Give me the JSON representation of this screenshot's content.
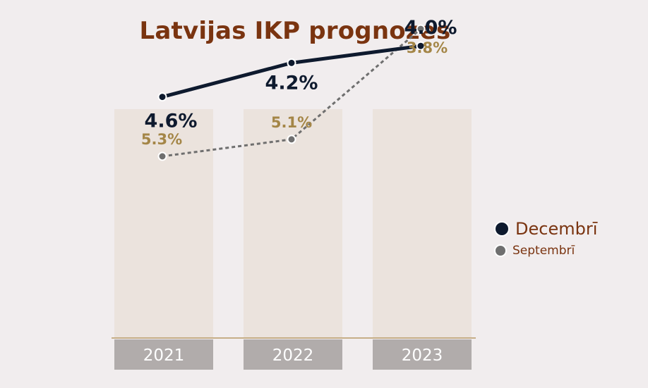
{
  "chart_data": {
    "type": "line",
    "title": "Latvijas IKP prognozes",
    "categories": [
      "2021",
      "2022",
      "2023"
    ],
    "series": [
      {
        "name": "Decembrī",
        "values": [
          4.6,
          4.2,
          4.0
        ],
        "labels": [
          "4.6%",
          "4.2%",
          "4.0%"
        ],
        "color": "#0e1a2e",
        "style": "solid"
      },
      {
        "name": "Septembrī",
        "values": [
          5.3,
          5.1,
          3.8
        ],
        "labels": [
          "5.3%",
          "5.1%",
          "3.8%"
        ],
        "color": "#6f6f6f",
        "style": "dashed"
      }
    ],
    "colors": {
      "title": "#7a3410",
      "column_bg": "#ebe3dd",
      "axis_box": "#b1acab",
      "axis_line": "#b79a66",
      "sep_label": "#a48647",
      "dec_label": "#0e1a2e"
    },
    "legend_position": "right"
  }
}
